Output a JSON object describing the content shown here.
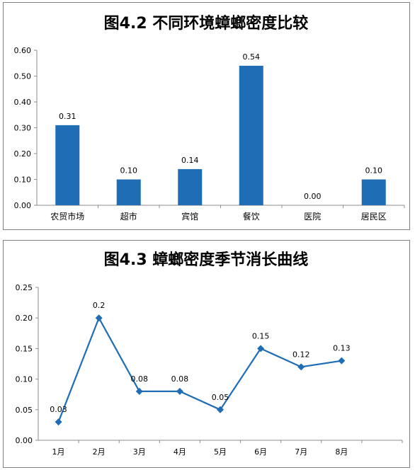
{
  "chart_data": [
    {
      "type": "bar",
      "title": "图4.2 不同环境蟑螂密度比较",
      "categories": [
        "农贸市场",
        "超市",
        "宾馆",
        "餐饮",
        "医院",
        "居民区"
      ],
      "values": [
        0.31,
        0.1,
        0.14,
        0.54,
        0.0,
        0.1
      ],
      "value_labels": [
        "0.31",
        "0.10",
        "0.14",
        "0.54",
        "0.00",
        "0.10"
      ],
      "ylim": [
        0,
        0.6
      ],
      "yticks": [
        "0.00",
        "0.10",
        "0.20",
        "0.30",
        "0.40",
        "0.50",
        "0.60"
      ],
      "grid": false,
      "color": "#1f6db5"
    },
    {
      "type": "line",
      "title": "图4.3 蟑螂密度季节消长曲线",
      "categories": [
        "1月",
        "2月",
        "3月",
        "4月",
        "5月",
        "6月",
        "7月",
        "8月"
      ],
      "values": [
        0.03,
        0.2,
        0.08,
        0.08,
        0.05,
        0.15,
        0.12,
        0.13
      ],
      "value_labels": [
        "0.03",
        "0.2",
        "0.08",
        "0.08",
        "0.05",
        "0.15",
        "0.12",
        "0.13"
      ],
      "ylim": [
        0,
        0.25
      ],
      "yticks": [
        "0.00",
        "0.05",
        "0.10",
        "0.15",
        "0.20",
        "0.25"
      ],
      "grid": false,
      "color": "#1f6db5"
    }
  ]
}
